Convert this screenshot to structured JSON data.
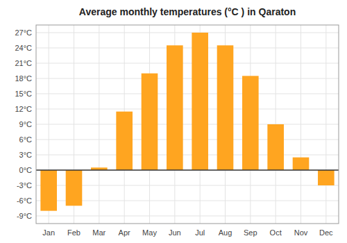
{
  "chart_data": {
    "type": "bar",
    "title": "Average monthly temperatures (°C ) in Qaraton",
    "categories": [
      "Jan",
      "Feb",
      "Mar",
      "Apr",
      "May",
      "Jun",
      "Jul",
      "Aug",
      "Sep",
      "Oct",
      "Nov",
      "Dec"
    ],
    "values": [
      -8,
      -7,
      0.5,
      11.5,
      19,
      24.5,
      27,
      24.5,
      18.5,
      9,
      2.5,
      -3
    ],
    "color": "#FFA520",
    "ylim": [
      -10.5,
      28.5
    ],
    "yticks": [
      {
        "value": -9,
        "label": "-9°C"
      },
      {
        "value": -6,
        "label": "-6°C"
      },
      {
        "value": -3,
        "label": "-3°C"
      },
      {
        "value": 0,
        "label": "0°C"
      },
      {
        "value": 3,
        "label": "3°C"
      },
      {
        "value": 6,
        "label": "6°C"
      },
      {
        "value": 9,
        "label": "9°C"
      },
      {
        "value": 12,
        "label": "12°C"
      },
      {
        "value": 15,
        "label": "15°C"
      },
      {
        "value": 18,
        "label": "18°C"
      },
      {
        "value": 21,
        "label": "21°C"
      },
      {
        "value": 24,
        "label": "24°C"
      },
      {
        "value": 27,
        "label": "27°C"
      }
    ],
    "grid": true
  }
}
